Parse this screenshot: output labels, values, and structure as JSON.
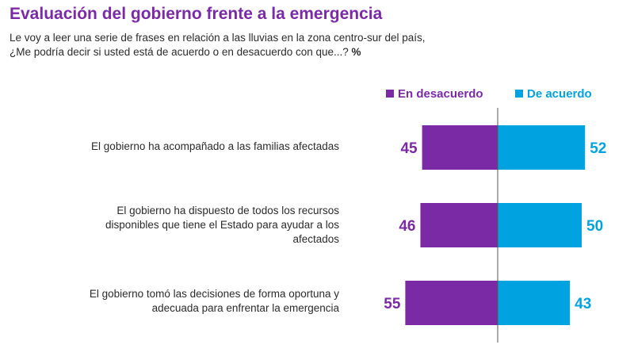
{
  "header": {
    "title": "Evaluación del gobierno frente a la emergencia",
    "subtitle_line1": "Le voy a leer una serie de frases en relación a las lluvias en la zona centro-sur del país,",
    "subtitle_line2": "¿Me podría decir si usted está de acuerdo o en desacuerdo con que...?",
    "subtitle_unit": "%"
  },
  "colors": {
    "disagree": "#7b2aa6",
    "agree": "#00a2e0",
    "title": "#7b2aa6",
    "text": "#2c2c2c",
    "axis": "#555555"
  },
  "chart_data": {
    "type": "bar",
    "orientation": "horizontal-diverging",
    "title": "Evaluación del gobierno frente a la emergencia",
    "unit": "%",
    "legend_position": "top-right",
    "grid": false,
    "categories": [
      [
        "El gobierno ha acompañado a las familias afectadas"
      ],
      [
        "El gobierno ha dispuesto de todos los recursos",
        "disponibles que tiene el Estado para ayudar a los",
        "afectados"
      ],
      [
        "El gobierno tomó las decisiones de forma oportuna y",
        "adecuada para enfrentar la emergencia"
      ]
    ],
    "series": [
      {
        "name": "En desacuerdo",
        "values": [
          45,
          46,
          55
        ]
      },
      {
        "name": "De acuerdo",
        "values": [
          52,
          50,
          43
        ]
      }
    ],
    "data_labels": {
      "disagree": [
        "45",
        "46",
        "55"
      ],
      "agree": [
        "52",
        "50",
        "43"
      ]
    }
  }
}
